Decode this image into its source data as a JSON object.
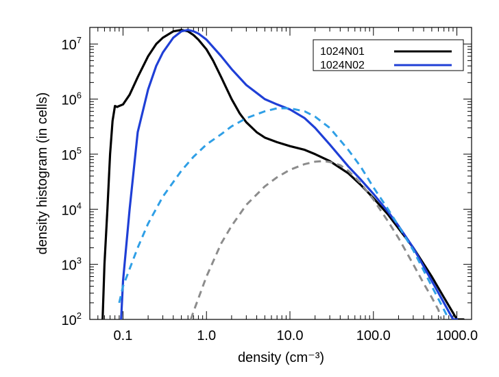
{
  "chart_data": {
    "type": "line",
    "xlabel": "density (cm⁻³)",
    "ylabel": "density histogram (in cells)",
    "x_scale": "log",
    "y_scale": "log",
    "xlim": [
      0.04,
      1500
    ],
    "ylim": [
      100,
      20000000
    ],
    "x_ticks": [
      {
        "value": 0.1,
        "label": "0.1"
      },
      {
        "value": 1,
        "label": "1.0"
      },
      {
        "value": 10,
        "label": "10.0"
      },
      {
        "value": 100,
        "label": "100.0"
      },
      {
        "value": 1000,
        "label": "1000.0"
      }
    ],
    "y_ticks": [
      {
        "value": 100,
        "base": "10",
        "exp": "2"
      },
      {
        "value": 1000,
        "base": "10",
        "exp": "3"
      },
      {
        "value": 10000,
        "base": "10",
        "exp": "4"
      },
      {
        "value": 100000,
        "base": "10",
        "exp": "5"
      },
      {
        "value": 1000000,
        "base": "10",
        "exp": "6"
      },
      {
        "value": 10000000,
        "base": "10",
        "exp": "7"
      }
    ],
    "legend_position": "top-right",
    "legend": [
      {
        "label": "1024N01",
        "color": "#000000",
        "series": "s1"
      },
      {
        "label": "1024N02",
        "color": "#1f3fd6",
        "series": "s2"
      }
    ],
    "series": [
      {
        "id": "s1",
        "name": "1024N01",
        "color": "#000000",
        "style": "solid",
        "x": [
          0.057,
          0.06,
          0.065,
          0.07,
          0.075,
          0.08,
          0.085,
          0.09,
          0.1,
          0.12,
          0.15,
          0.2,
          0.25,
          0.3,
          0.4,
          0.5,
          0.6,
          0.7,
          0.8,
          1.0,
          1.2,
          1.5,
          2.0,
          2.5,
          3.0,
          4.0,
          5.0,
          7.0,
          10,
          15,
          20,
          30,
          50,
          70,
          100,
          150,
          200,
          300,
          500,
          700,
          1000,
          1200
        ],
        "y": [
          100,
          1000,
          10000,
          100000,
          400000,
          750000,
          720000,
          750000,
          800000,
          1200000,
          2500000,
          6000000,
          10000000,
          13000000,
          17000000,
          18000000,
          17000000,
          14500000,
          12000000,
          8000000,
          5000000,
          2500000,
          1000000,
          550000,
          380000,
          250000,
          200000,
          165000,
          140000,
          120000,
          100000,
          75000,
          45000,
          28000,
          16000,
          8000,
          4500,
          2000,
          600,
          250,
          100,
          100
        ]
      },
      {
        "id": "s2",
        "name": "1024N02",
        "color": "#1f3fd6",
        "style": "solid",
        "x": [
          0.095,
          0.1,
          0.12,
          0.15,
          0.2,
          0.25,
          0.3,
          0.4,
          0.5,
          0.6,
          0.7,
          0.8,
          1.0,
          1.5,
          2.0,
          3.0,
          5.0,
          7.0,
          10,
          15,
          20,
          30,
          50,
          70,
          100,
          150,
          200,
          300,
          500,
          700,
          900,
          1000
        ],
        "y": [
          100,
          500,
          10000,
          250000,
          1500000,
          4000000,
          7000000,
          13000000,
          17000000,
          18000000,
          17000000,
          15500000,
          12000000,
          6000000,
          3500000,
          1800000,
          1000000,
          800000,
          650000,
          450000,
          300000,
          150000,
          60000,
          35000,
          19000,
          9000,
          5000,
          2000,
          500,
          200,
          100,
          100
        ]
      },
      {
        "id": "s3",
        "name": "",
        "color": "#2f9fe6",
        "style": "dashed",
        "x": [
          0.09,
          0.1,
          0.15,
          0.2,
          0.3,
          0.5,
          0.7,
          1.0,
          1.5,
          2.0,
          3.0,
          5.0,
          7.0,
          10,
          15,
          20,
          30,
          50,
          70,
          100,
          150,
          200,
          300,
          500,
          700,
          800
        ],
        "y": [
          200,
          400,
          2000,
          5500,
          17000,
          50000,
          90000,
          150000,
          230000,
          320000,
          450000,
          600000,
          680000,
          680000,
          600000,
          480000,
          300000,
          120000,
          60000,
          25000,
          10000,
          5000,
          1800,
          400,
          150,
          100
        ]
      },
      {
        "id": "s4",
        "name": "",
        "color": "#8c8c8c",
        "style": "dashed",
        "x": [
          0.65,
          0.7,
          1.0,
          1.5,
          2.0,
          3.0,
          5.0,
          7.0,
          10,
          15,
          20,
          25,
          30,
          40,
          50,
          70,
          100,
          150,
          200,
          300,
          400,
          500,
          600,
          650
        ],
        "y": [
          100,
          140,
          600,
          2400,
          5000,
          12000,
          26000,
          38000,
          52000,
          66000,
          73000,
          75000,
          72000,
          63000,
          50000,
          30000,
          15000,
          6000,
          3000,
          1000,
          450,
          250,
          150,
          100
        ]
      }
    ]
  }
}
